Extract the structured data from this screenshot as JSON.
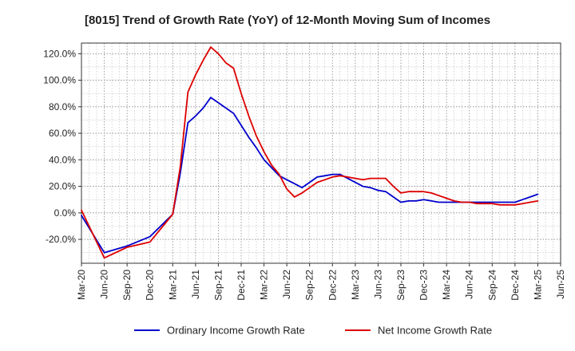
{
  "chart_data": {
    "type": "line",
    "title": "[8015]  Trend of Growth Rate (YoY) of 12-Month Moving Sum of Incomes",
    "xlabel": "",
    "ylabel": "",
    "ylim": [
      -38,
      128
    ],
    "y_ticks": [
      -20,
      0,
      20,
      40,
      60,
      80,
      100,
      120
    ],
    "y_tick_labels": [
      "-20.0%",
      "0.0%",
      "20.0%",
      "40.0%",
      "60.0%",
      "80.0%",
      "100.0%",
      "120.0%"
    ],
    "x_ticks": [
      "Mar-20",
      "Jun-20",
      "Sep-20",
      "Dec-20",
      "Mar-21",
      "Jun-21",
      "Sep-21",
      "Dec-21",
      "Mar-22",
      "Jun-22",
      "Sep-22",
      "Dec-22",
      "Mar-23",
      "Jun-23",
      "Sep-23",
      "Dec-23",
      "Mar-24",
      "Jun-24",
      "Sep-24",
      "Dec-24",
      "Mar-25",
      "Jun-25"
    ],
    "grid": true,
    "legend_position": "bottom",
    "series": [
      {
        "name": "Ordinary Income Growth Rate",
        "color": "#0000cc",
        "x": [
          0,
          3,
          6,
          9,
          12,
          13,
          14,
          15,
          16,
          17,
          18,
          19,
          20,
          21,
          22,
          23,
          24,
          25,
          26,
          27,
          28,
          29,
          30,
          31,
          32,
          33,
          34,
          35,
          36,
          37,
          38,
          39,
          40,
          41,
          42,
          43,
          44,
          45,
          46,
          47,
          48,
          49,
          50,
          51,
          52,
          53,
          54,
          55,
          56,
          57,
          58,
          59,
          60
        ],
        "values": [
          -2,
          -30,
          -25,
          -18,
          -1,
          30,
          68,
          73,
          79,
          87,
          83,
          79,
          75,
          66,
          57,
          49,
          40,
          34,
          28,
          25,
          22,
          19,
          23,
          27,
          28,
          29,
          29,
          26,
          23,
          20,
          19,
          17,
          16,
          12,
          8,
          9,
          9,
          10,
          9,
          8,
          8,
          8,
          8,
          8,
          8,
          8,
          8,
          8,
          8,
          8,
          10,
          12,
          14
        ]
      },
      {
        "name": "Net Income Growth Rate",
        "color": "#dd0000",
        "x": [
          0,
          3,
          6,
          9,
          12,
          13,
          14,
          15,
          16,
          17,
          18,
          19,
          20,
          21,
          22,
          23,
          24,
          25,
          26,
          27,
          28,
          29,
          30,
          31,
          32,
          33,
          34,
          35,
          36,
          37,
          38,
          39,
          40,
          41,
          42,
          43,
          44,
          45,
          46,
          47,
          48,
          49,
          50,
          51,
          52,
          53,
          54,
          55,
          56,
          57,
          58,
          59,
          60
        ],
        "values": [
          2,
          -34,
          -26,
          -22,
          -1,
          35,
          91,
          104,
          115,
          125,
          120,
          113,
          109,
          90,
          73,
          58,
          46,
          36,
          29,
          18,
          12,
          15,
          19,
          23,
          25,
          27,
          28,
          27,
          26,
          25,
          26,
          26,
          26,
          20,
          15,
          16,
          16,
          16,
          15,
          13,
          11,
          9,
          8,
          8,
          7,
          7,
          7,
          6,
          6,
          6,
          7,
          8,
          9
        ]
      }
    ]
  }
}
